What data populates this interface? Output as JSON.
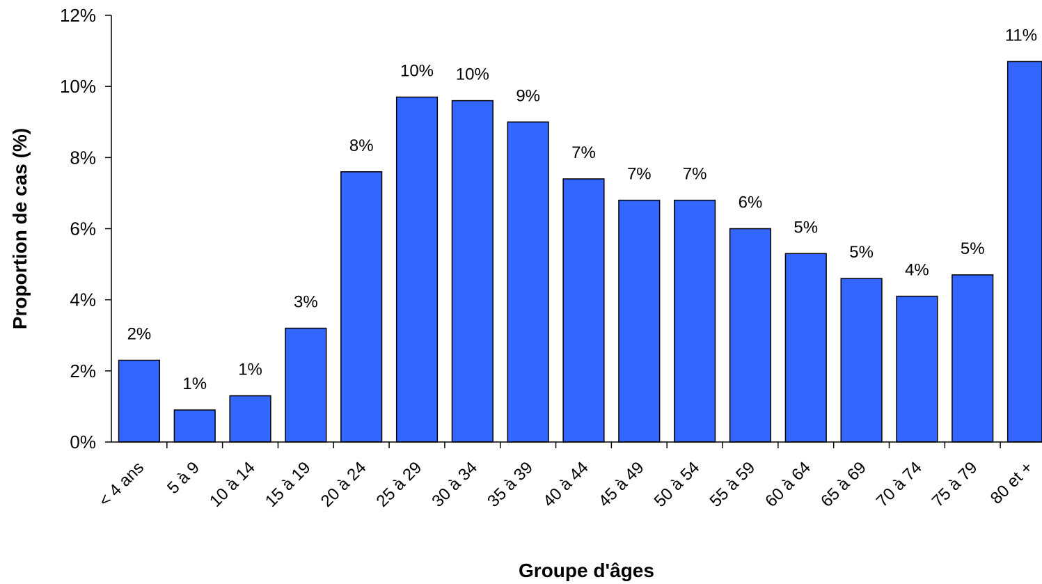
{
  "chart_data": {
    "type": "bar",
    "title": "",
    "xlabel": "Groupe d'âges",
    "ylabel": "Proportion de cas (%)",
    "categories": [
      "< 4 ans",
      "5 à 9",
      "10 à 14",
      "15 à 19",
      "20 à 24",
      "25 à 29",
      "30 à 34",
      "35 à 39",
      "40 à 44",
      "45 à 49",
      "50 à 54",
      "55 à 59",
      "60 à 64",
      "65 à 69",
      "70 à 74",
      "75 à 79",
      "80 et +"
    ],
    "values": [
      2.3,
      0.9,
      1.3,
      3.2,
      7.6,
      9.7,
      9.6,
      9.0,
      7.4,
      6.8,
      6.8,
      6.0,
      5.3,
      4.6,
      4.1,
      4.7,
      10.7
    ],
    "data_labels": [
      "2%",
      "1%",
      "1%",
      "3%",
      "8%",
      "10%",
      "10%",
      "9%",
      "7%",
      "7%",
      "7%",
      "6%",
      "5%",
      "5%",
      "4%",
      "5%",
      "11%"
    ],
    "yticks": [
      "0%",
      "2%",
      "4%",
      "6%",
      "8%",
      "10%",
      "12%"
    ],
    "ytick_values": [
      0,
      2,
      4,
      6,
      8,
      10,
      12
    ],
    "ylim": [
      0,
      12
    ],
    "grid": false,
    "legend": "none",
    "bar_color": "#3366FF",
    "bar_edge_color": "#000000"
  }
}
